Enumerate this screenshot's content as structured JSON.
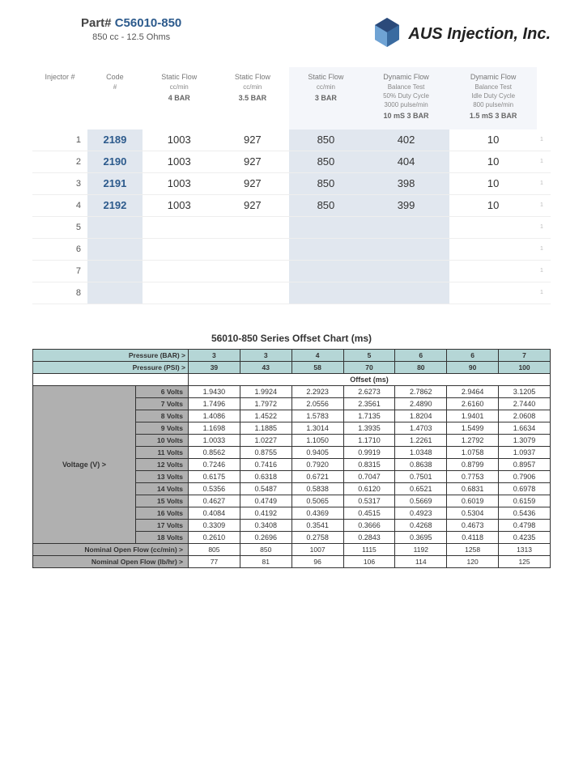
{
  "header": {
    "part_label": "Part# ",
    "part_number": "C56010-850",
    "part_sub": "850 cc - 12.5 Ohms",
    "brand": "AUS Injection, Inc.",
    "logo_colors": {
      "dark": "#2b4a7a",
      "light": "#5a8fc4"
    }
  },
  "injector_table": {
    "columns": [
      {
        "l1": "Injector #"
      },
      {
        "l1": "Code",
        "l2": "#"
      },
      {
        "l1": "Static Flow",
        "l2": "cc/min",
        "b": "4 BAR"
      },
      {
        "l1": "Static Flow",
        "l2": "cc/min",
        "b": "3.5 BAR"
      },
      {
        "l1": "Static Flow",
        "l2": "cc/min",
        "b": "3 BAR"
      },
      {
        "l1": "Dynamic Flow",
        "l2": "Balance Test",
        "l3": "50% Duty Cycle",
        "l4": "3000 pulse/min",
        "b": "10 mS  3 BAR"
      },
      {
        "l1": "Dynamic Flow",
        "l2": "Balance Test",
        "l3": "Idle Duty Cycle",
        "l4": "800 pulse/min",
        "b": "1.5 mS 3 BAR"
      }
    ],
    "rows": [
      {
        "n": "1",
        "code": "2189",
        "sf4": "1003",
        "sf35": "927",
        "sf3": "850",
        "d50": "402",
        "didle": "10"
      },
      {
        "n": "2",
        "code": "2190",
        "sf4": "1003",
        "sf35": "927",
        "sf3": "850",
        "d50": "404",
        "didle": "10"
      },
      {
        "n": "3",
        "code": "2191",
        "sf4": "1003",
        "sf35": "927",
        "sf3": "850",
        "d50": "398",
        "didle": "10"
      },
      {
        "n": "4",
        "code": "2192",
        "sf4": "1003",
        "sf35": "927",
        "sf3": "850",
        "d50": "399",
        "didle": "10"
      },
      {
        "n": "5",
        "code": "",
        "sf4": "",
        "sf35": "",
        "sf3": "",
        "d50": "",
        "didle": ""
      },
      {
        "n": "6",
        "code": "",
        "sf4": "",
        "sf35": "",
        "sf3": "",
        "d50": "",
        "didle": ""
      },
      {
        "n": "7",
        "code": "",
        "sf4": "",
        "sf35": "",
        "sf3": "",
        "d50": "",
        "didle": ""
      },
      {
        "n": "8",
        "code": "",
        "sf4": "",
        "sf35": "",
        "sf3": "",
        "d50": "",
        "didle": ""
      }
    ],
    "tiny_marker": "1"
  },
  "offset_chart": {
    "title": "56010-850 Series Offset Chart (ms)",
    "pressure_bar_label": "Pressure (BAR) >",
    "pressure_psi_label": "Pressure (PSI) >",
    "pressure_bar": [
      "3",
      "3",
      "4",
      "5",
      "6",
      "6",
      "7"
    ],
    "pressure_psi": [
      "39",
      "43",
      "58",
      "70",
      "80",
      "90",
      "100"
    ],
    "offset_header": "Offset (ms)",
    "voltage_label": "Voltage (V) >",
    "voltages": [
      "6 Volts",
      "7 Volts",
      "8 Volts",
      "9 Volts",
      "10 Volts",
      "11 Volts",
      "12 Volts",
      "13 Volts",
      "14 Volts",
      "15 Volts",
      "16 Volts",
      "17 Volts",
      "18 Volts"
    ],
    "values": [
      [
        "1.9430",
        "1.9924",
        "2.2923",
        "2.6273",
        "2.7862",
        "2.9464",
        "3.1205"
      ],
      [
        "1.7496",
        "1.7972",
        "2.0556",
        "2.3561",
        "2.4890",
        "2.6160",
        "2.7440"
      ],
      [
        "1.4086",
        "1.4522",
        "1.5783",
        "1.7135",
        "1.8204",
        "1.9401",
        "2.0608"
      ],
      [
        "1.1698",
        "1.1885",
        "1.3014",
        "1.3935",
        "1.4703",
        "1.5499",
        "1.6634"
      ],
      [
        "1.0033",
        "1.0227",
        "1.1050",
        "1.1710",
        "1.2261",
        "1.2792",
        "1.3079"
      ],
      [
        "0.8562",
        "0.8755",
        "0.9405",
        "0.9919",
        "1.0348",
        "1.0758",
        "1.0937"
      ],
      [
        "0.7246",
        "0.7416",
        "0.7920",
        "0.8315",
        "0.8638",
        "0.8799",
        "0.8957"
      ],
      [
        "0.6175",
        "0.6318",
        "0.6721",
        "0.7047",
        "0.7501",
        "0.7753",
        "0.7906"
      ],
      [
        "0.5356",
        "0.5487",
        "0.5838",
        "0.6120",
        "0.6521",
        "0.6831",
        "0.6978"
      ],
      [
        "0.4627",
        "0.4749",
        "0.5065",
        "0.5317",
        "0.5669",
        "0.6019",
        "0.6159"
      ],
      [
        "0.4084",
        "0.4192",
        "0.4369",
        "0.4515",
        "0.4923",
        "0.5304",
        "0.5436"
      ],
      [
        "0.3309",
        "0.3408",
        "0.3541",
        "0.3666",
        "0.4268",
        "0.4673",
        "0.4798"
      ],
      [
        "0.2610",
        "0.2696",
        "0.2758",
        "0.2843",
        "0.3695",
        "0.4118",
        "0.4235"
      ]
    ],
    "nom_cc_label": "Nominal Open Flow (cc/min) >",
    "nom_cc": [
      "805",
      "850",
      "1007",
      "1115",
      "1192",
      "1258",
      "1313"
    ],
    "nom_lb_label": "Nominal Open Flow (lb/hr) >",
    "nom_lb": [
      "77",
      "81",
      "96",
      "106",
      "114",
      "120",
      "125"
    ],
    "colors": {
      "pressure_bg": "#b5d6d6",
      "grey_bg": "#b0b0b0",
      "border": "#333333"
    }
  }
}
